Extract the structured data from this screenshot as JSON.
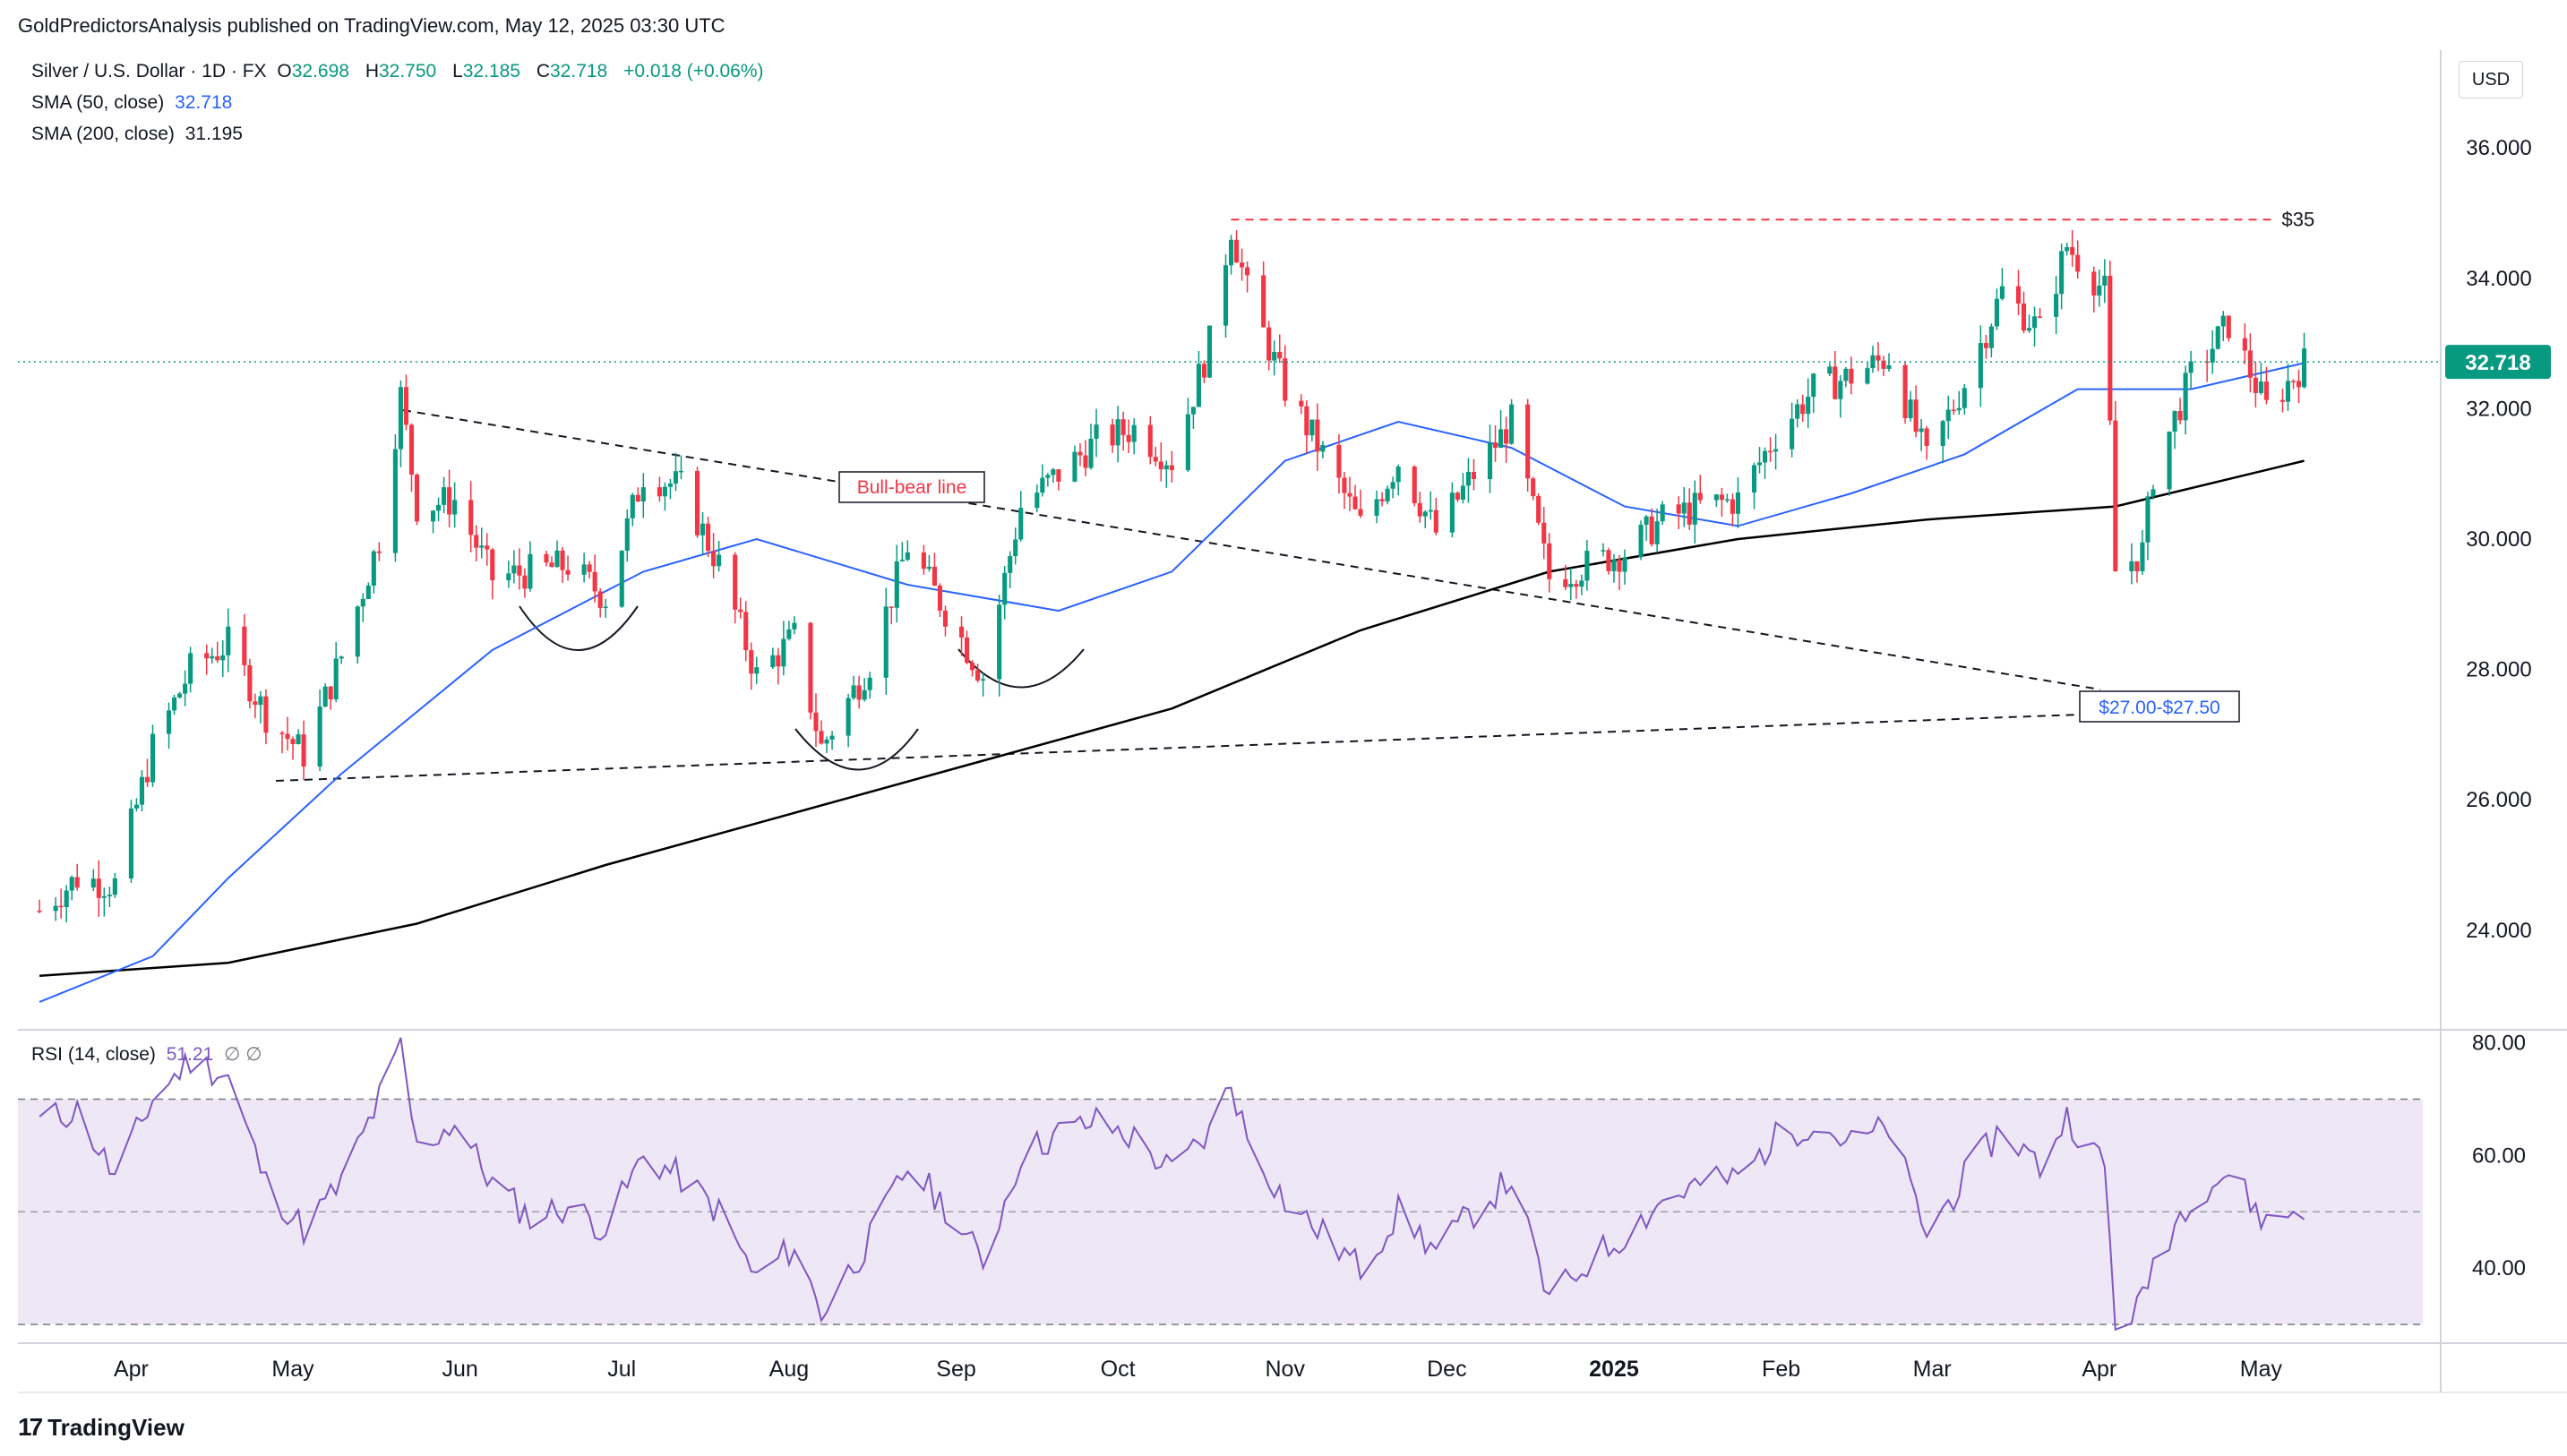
{
  "header": {
    "publisher_line": "GoldPredictorsAnalysis published on TradingView.com, May 12, 2025 03:30 UTC"
  },
  "legend": {
    "symbol": "Silver / U.S. Dollar · 1D · FX",
    "open_label": "O",
    "open": "32.698",
    "high_label": "H",
    "high": "32.750",
    "low_label": "L",
    "low": "32.185",
    "close_label": "C",
    "close": "32.718",
    "change": "+0.018 (+0.06%)",
    "sma50_label": "SMA (50, close)",
    "sma50_value": "32.718",
    "sma200_label": "SMA (200, close)",
    "sma200_value": "31.195",
    "rsi_label": "RSI (14, close)",
    "rsi_value": "51.21",
    "rsi_extra": "∅ ∅"
  },
  "currency_button": "USD",
  "footer": {
    "brand": "TradingView"
  },
  "colors": {
    "up": "#089981",
    "down": "#f23645",
    "sma50": "#2962ff",
    "sma200": "#000000",
    "rsi": "#7e57c2",
    "rsi_band": "#ede7f6",
    "resistance": "#f23645",
    "price_tag": "#089981"
  },
  "chart_data": [
    {
      "type": "candlestick",
      "title": "Silver / U.S. Dollar",
      "interval": "1D",
      "ylim": [
        22.5,
        37.5
      ],
      "y_ticks": [
        "24.000",
        "26.000",
        "28.000",
        "30.000",
        "32.000",
        "34.000",
        "36.000"
      ],
      "x_ticks": [
        "Apr",
        "May",
        "Jun",
        "Jul",
        "Aug",
        "Sep",
        "Oct",
        "Nov",
        "Dec",
        "2025",
        "Feb",
        "Mar",
        "Apr",
        "May"
      ],
      "last_price_label": "32.718",
      "close_path": [
        {
          "t": "2024-03-15",
          "c": 24.3
        },
        {
          "t": "2024-03-22",
          "c": 24.8
        },
        {
          "t": "2024-03-29",
          "c": 24.7
        },
        {
          "t": "2024-04-05",
          "c": 26.8
        },
        {
          "t": "2024-04-12",
          "c": 28.0
        },
        {
          "t": "2024-04-19",
          "c": 28.4
        },
        {
          "t": "2024-04-26",
          "c": 27.3
        },
        {
          "t": "2024-05-03",
          "c": 26.7
        },
        {
          "t": "2024-05-10",
          "c": 28.2
        },
        {
          "t": "2024-05-17",
          "c": 30.0
        },
        {
          "t": "2024-05-21",
          "c": 32.2
        },
        {
          "t": "2024-05-24",
          "c": 30.5
        },
        {
          "t": "2024-05-31",
          "c": 30.6
        },
        {
          "t": "2024-06-07",
          "c": 29.4
        },
        {
          "t": "2024-06-14",
          "c": 29.5
        },
        {
          "t": "2024-06-21",
          "c": 29.6
        },
        {
          "t": "2024-06-28",
          "c": 29.1
        },
        {
          "t": "2024-07-05",
          "c": 31.0
        },
        {
          "t": "2024-07-12",
          "c": 30.8
        },
        {
          "t": "2024-07-19",
          "c": 29.6
        },
        {
          "t": "2024-07-26",
          "c": 27.9
        },
        {
          "t": "2024-08-02",
          "c": 28.5
        },
        {
          "t": "2024-08-07",
          "c": 26.8
        },
        {
          "t": "2024-08-16",
          "c": 28.1
        },
        {
          "t": "2024-08-23",
          "c": 29.9
        },
        {
          "t": "2024-08-30",
          "c": 28.9
        },
        {
          "t": "2024-09-06",
          "c": 27.9
        },
        {
          "t": "2024-09-13",
          "c": 30.5
        },
        {
          "t": "2024-09-20",
          "c": 31.0
        },
        {
          "t": "2024-09-27",
          "c": 31.5
        },
        {
          "t": "2024-10-04",
          "c": 31.7
        },
        {
          "t": "2024-10-11",
          "c": 31.2
        },
        {
          "t": "2024-10-18",
          "c": 33.0
        },
        {
          "t": "2024-10-22",
          "c": 34.8
        },
        {
          "t": "2024-10-25",
          "c": 33.8
        },
        {
          "t": "2024-11-01",
          "c": 32.3
        },
        {
          "t": "2024-11-08",
          "c": 31.3
        },
        {
          "t": "2024-11-15",
          "c": 30.2
        },
        {
          "t": "2024-11-22",
          "c": 31.2
        },
        {
          "t": "2024-11-29",
          "c": 30.1
        },
        {
          "t": "2024-12-06",
          "c": 31.0
        },
        {
          "t": "2024-12-13",
          "c": 31.8
        },
        {
          "t": "2024-12-20",
          "c": 29.4
        },
        {
          "t": "2024-12-27",
          "c": 29.6
        },
        {
          "t": "2025-01-03",
          "c": 29.8
        },
        {
          "t": "2025-01-10",
          "c": 30.3
        },
        {
          "t": "2025-01-17",
          "c": 30.5
        },
        {
          "t": "2025-01-24",
          "c": 30.6
        },
        {
          "t": "2025-01-31",
          "c": 31.6
        },
        {
          "t": "2025-02-07",
          "c": 32.3
        },
        {
          "t": "2025-02-14",
          "c": 32.5
        },
        {
          "t": "2025-02-21",
          "c": 32.8
        },
        {
          "t": "2025-02-28",
          "c": 31.2
        },
        {
          "t": "2025-03-07",
          "c": 32.4
        },
        {
          "t": "2025-03-14",
          "c": 33.8
        },
        {
          "t": "2025-03-21",
          "c": 33.2
        },
        {
          "t": "2025-03-26",
          "c": 34.5
        },
        {
          "t": "2025-04-02",
          "c": 33.8
        },
        {
          "t": "2025-04-04",
          "c": 29.5
        },
        {
          "t": "2025-04-09",
          "c": 29.8
        },
        {
          "t": "2025-04-11",
          "c": 31.0
        },
        {
          "t": "2025-04-18",
          "c": 32.5
        },
        {
          "t": "2025-04-25",
          "c": 33.3
        },
        {
          "t": "2025-05-02",
          "c": 32.0
        },
        {
          "t": "2025-05-09",
          "c": 32.7
        }
      ],
      "sma50_path": [
        {
          "t": "2024-03-15",
          "v": 22.9
        },
        {
          "t": "2024-04-05",
          "v": 23.6
        },
        {
          "t": "2024-04-19",
          "v": 24.8
        },
        {
          "t": "2024-05-10",
          "v": 26.4
        },
        {
          "t": "2024-06-07",
          "v": 28.3
        },
        {
          "t": "2024-07-05",
          "v": 29.5
        },
        {
          "t": "2024-07-26",
          "v": 30.0
        },
        {
          "t": "2024-08-23",
          "v": 29.3
        },
        {
          "t": "2024-09-20",
          "v": 28.9
        },
        {
          "t": "2024-10-11",
          "v": 29.5
        },
        {
          "t": "2024-11-01",
          "v": 31.2
        },
        {
          "t": "2024-11-22",
          "v": 31.8
        },
        {
          "t": "2024-12-13",
          "v": 31.4
        },
        {
          "t": "2025-01-03",
          "v": 30.5
        },
        {
          "t": "2025-01-24",
          "v": 30.2
        },
        {
          "t": "2025-02-14",
          "v": 30.7
        },
        {
          "t": "2025-03-07",
          "v": 31.3
        },
        {
          "t": "2025-03-28",
          "v": 32.3
        },
        {
          "t": "2025-04-18",
          "v": 32.3
        },
        {
          "t": "2025-05-09",
          "v": 32.7
        }
      ],
      "sma200_path": [
        {
          "t": "2024-03-15",
          "v": 23.3
        },
        {
          "t": "2024-04-19",
          "v": 23.5
        },
        {
          "t": "2024-05-24",
          "v": 24.1
        },
        {
          "t": "2024-06-28",
          "v": 25.0
        },
        {
          "t": "2024-08-02",
          "v": 25.8
        },
        {
          "t": "2024-09-06",
          "v": 26.6
        },
        {
          "t": "2024-10-11",
          "v": 27.4
        },
        {
          "t": "2024-11-15",
          "v": 28.6
        },
        {
          "t": "2024-12-20",
          "v": 29.5
        },
        {
          "t": "2025-01-24",
          "v": 30.0
        },
        {
          "t": "2025-02-28",
          "v": 30.3
        },
        {
          "t": "2025-04-04",
          "v": 30.5
        },
        {
          "t": "2025-05-09",
          "v": 31.2
        }
      ]
    },
    {
      "type": "line",
      "title": "RSI (14, close)",
      "ylim": [
        27,
        82
      ],
      "y_ticks": [
        "40.00",
        "60.00",
        "80.00"
      ],
      "band": [
        30,
        70
      ],
      "midline": 50,
      "path": [
        {
          "t": "2024-03-15",
          "v": 66
        },
        {
          "t": "2024-03-22",
          "v": 68
        },
        {
          "t": "2024-03-29",
          "v": 56
        },
        {
          "t": "2024-04-05",
          "v": 70
        },
        {
          "t": "2024-04-12",
          "v": 77
        },
        {
          "t": "2024-04-19",
          "v": 74
        },
        {
          "t": "2024-04-26",
          "v": 55
        },
        {
          "t": "2024-05-03",
          "v": 47
        },
        {
          "t": "2024-05-10",
          "v": 55
        },
        {
          "t": "2024-05-17",
          "v": 70
        },
        {
          "t": "2024-05-21",
          "v": 79
        },
        {
          "t": "2024-05-24",
          "v": 61
        },
        {
          "t": "2024-05-31",
          "v": 66
        },
        {
          "t": "2024-06-07",
          "v": 55
        },
        {
          "t": "2024-06-14",
          "v": 49
        },
        {
          "t": "2024-06-21",
          "v": 51
        },
        {
          "t": "2024-06-28",
          "v": 47
        },
        {
          "t": "2024-07-05",
          "v": 60
        },
        {
          "t": "2024-07-12",
          "v": 56
        },
        {
          "t": "2024-07-19",
          "v": 50
        },
        {
          "t": "2024-07-26",
          "v": 38
        },
        {
          "t": "2024-08-02",
          "v": 44
        },
        {
          "t": "2024-08-07",
          "v": 32
        },
        {
          "t": "2024-08-16",
          "v": 45
        },
        {
          "t": "2024-08-23",
          "v": 58
        },
        {
          "t": "2024-08-30",
          "v": 51
        },
        {
          "t": "2024-09-06",
          "v": 41
        },
        {
          "t": "2024-09-13",
          "v": 60
        },
        {
          "t": "2024-09-20",
          "v": 64
        },
        {
          "t": "2024-09-27",
          "v": 66
        },
        {
          "t": "2024-10-04",
          "v": 63
        },
        {
          "t": "2024-10-11",
          "v": 57
        },
        {
          "t": "2024-10-18",
          "v": 64
        },
        {
          "t": "2024-10-22",
          "v": 73
        },
        {
          "t": "2024-10-25",
          "v": 63
        },
        {
          "t": "2024-11-01",
          "v": 52
        },
        {
          "t": "2024-11-08",
          "v": 46
        },
        {
          "t": "2024-11-15",
          "v": 40
        },
        {
          "t": "2024-11-22",
          "v": 50
        },
        {
          "t": "2024-11-29",
          "v": 43
        },
        {
          "t": "2024-12-06",
          "v": 50
        },
        {
          "t": "2024-12-13",
          "v": 56
        },
        {
          "t": "2024-12-20",
          "v": 34
        },
        {
          "t": "2024-12-27",
          "v": 41
        },
        {
          "t": "2025-01-03",
          "v": 46
        },
        {
          "t": "2025-01-10",
          "v": 52
        },
        {
          "t": "2025-01-17",
          "v": 55
        },
        {
          "t": "2025-01-24",
          "v": 56
        },
        {
          "t": "2025-01-31",
          "v": 63
        },
        {
          "t": "2025-02-07",
          "v": 66
        },
        {
          "t": "2025-02-14",
          "v": 62
        },
        {
          "t": "2025-02-21",
          "v": 65
        },
        {
          "t": "2025-02-28",
          "v": 46
        },
        {
          "t": "2025-03-07",
          "v": 56
        },
        {
          "t": "2025-03-14",
          "v": 65
        },
        {
          "t": "2025-03-21",
          "v": 58
        },
        {
          "t": "2025-03-26",
          "v": 67
        },
        {
          "t": "2025-04-02",
          "v": 58
        },
        {
          "t": "2025-04-04",
          "v": 30
        },
        {
          "t": "2025-04-09",
          "v": 34
        },
        {
          "t": "2025-04-11",
          "v": 41
        },
        {
          "t": "2025-04-18",
          "v": 53
        },
        {
          "t": "2025-04-25",
          "v": 57
        },
        {
          "t": "2025-05-02",
          "v": 48
        },
        {
          "t": "2025-05-09",
          "v": 51
        }
      ]
    }
  ],
  "annotations": {
    "resistance_label": "$35",
    "resistance_price": 34.9,
    "bull_bear_label": "Bull-bear line",
    "support_zone_label": "$27.00-$27.50"
  }
}
